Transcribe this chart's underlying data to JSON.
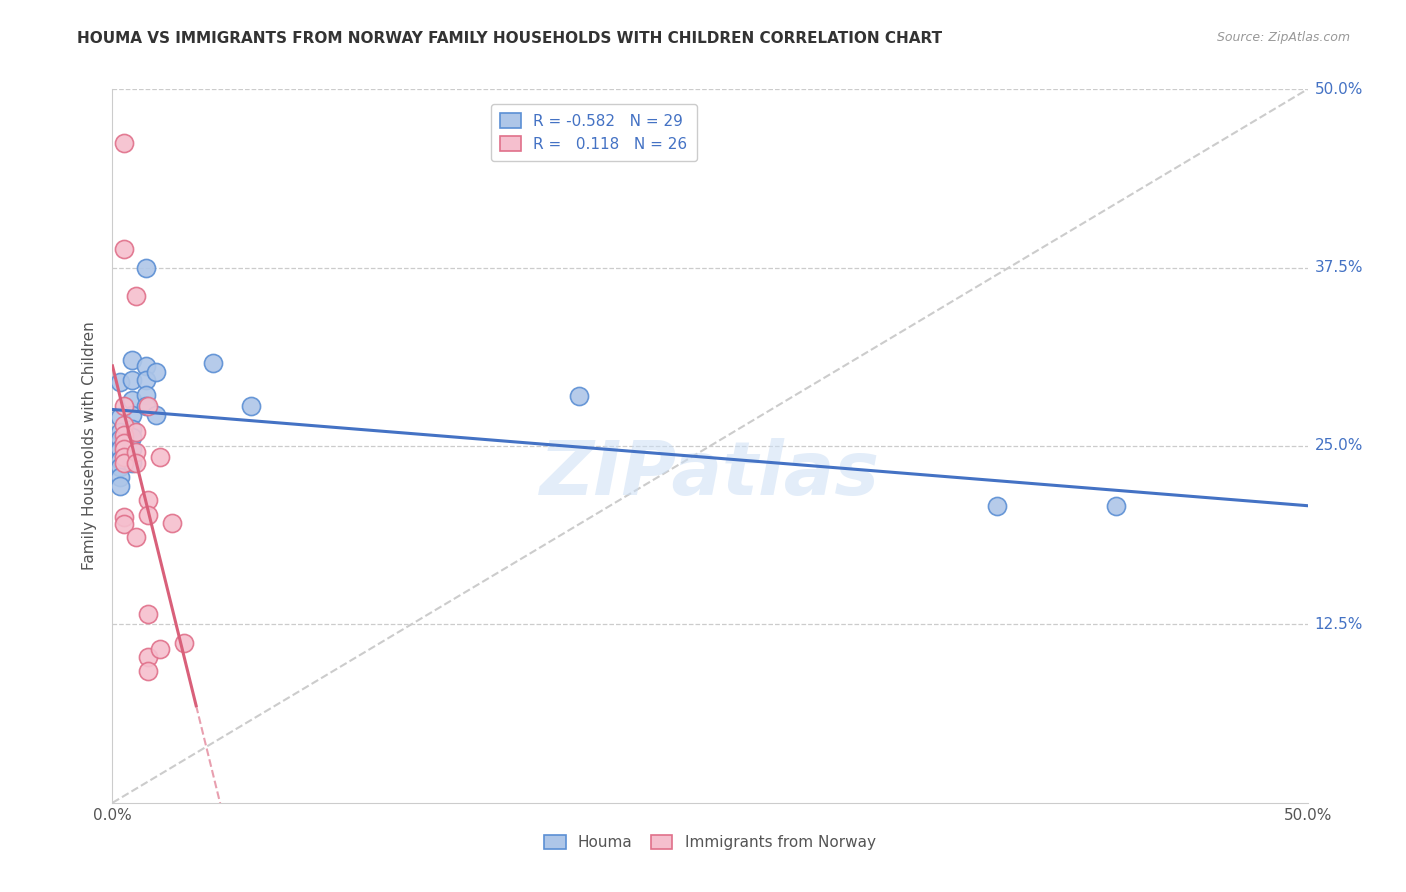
{
  "title": "HOUMA VS IMMIGRANTS FROM NORWAY FAMILY HOUSEHOLDS WITH CHILDREN CORRELATION CHART",
  "source": "Source: ZipAtlas.com",
  "ylabel": "Family Households with Children",
  "xlim": [
    0.0,
    0.5
  ],
  "ylim": [
    0.0,
    0.5
  ],
  "xtick_positions": [
    0.0,
    0.1,
    0.2,
    0.3,
    0.4,
    0.5
  ],
  "xtick_labels": [
    "0.0%",
    "",
    "",
    "",
    "",
    "50.0%"
  ],
  "ytick_positions": [
    0.125,
    0.25,
    0.375,
    0.5
  ],
  "ytick_labels": [
    "12.5%",
    "25.0%",
    "37.5%",
    "50.0%"
  ],
  "houma_fill": "#aec6e8",
  "houma_edge": "#5b8fd4",
  "norway_fill": "#f5bfce",
  "norway_edge": "#e0708a",
  "houma_line_color": "#4472c4",
  "norway_line_color": "#d9607a",
  "legend_R_houma": "-0.582",
  "legend_N_houma": "29",
  "legend_R_norway": "0.118",
  "legend_N_norway": "26",
  "watermark": "ZIPatlas",
  "grid_color": "#cccccc",
  "houma_points": [
    [
      0.003,
      0.295
    ],
    [
      0.003,
      0.27
    ],
    [
      0.003,
      0.26
    ],
    [
      0.003,
      0.255
    ],
    [
      0.003,
      0.248
    ],
    [
      0.003,
      0.24
    ],
    [
      0.003,
      0.235
    ],
    [
      0.003,
      0.228
    ],
    [
      0.003,
      0.222
    ],
    [
      0.008,
      0.31
    ],
    [
      0.008,
      0.296
    ],
    [
      0.008,
      0.282
    ],
    [
      0.008,
      0.272
    ],
    [
      0.008,
      0.262
    ],
    [
      0.008,
      0.256
    ],
    [
      0.008,
      0.248
    ],
    [
      0.008,
      0.238
    ],
    [
      0.014,
      0.375
    ],
    [
      0.014,
      0.306
    ],
    [
      0.014,
      0.296
    ],
    [
      0.014,
      0.286
    ],
    [
      0.014,
      0.278
    ],
    [
      0.018,
      0.302
    ],
    [
      0.018,
      0.272
    ],
    [
      0.042,
      0.308
    ],
    [
      0.058,
      0.278
    ],
    [
      0.195,
      0.285
    ],
    [
      0.37,
      0.208
    ],
    [
      0.42,
      0.208
    ]
  ],
  "norway_points": [
    [
      0.005,
      0.462
    ],
    [
      0.005,
      0.388
    ],
    [
      0.01,
      0.355
    ],
    [
      0.005,
      0.278
    ],
    [
      0.005,
      0.265
    ],
    [
      0.005,
      0.258
    ],
    [
      0.005,
      0.252
    ],
    [
      0.005,
      0.248
    ],
    [
      0.005,
      0.242
    ],
    [
      0.005,
      0.238
    ],
    [
      0.005,
      0.2
    ],
    [
      0.005,
      0.195
    ],
    [
      0.01,
      0.26
    ],
    [
      0.01,
      0.246
    ],
    [
      0.01,
      0.238
    ],
    [
      0.01,
      0.186
    ],
    [
      0.015,
      0.278
    ],
    [
      0.015,
      0.212
    ],
    [
      0.015,
      0.202
    ],
    [
      0.015,
      0.132
    ],
    [
      0.015,
      0.102
    ],
    [
      0.015,
      0.092
    ],
    [
      0.02,
      0.242
    ],
    [
      0.02,
      0.108
    ],
    [
      0.025,
      0.196
    ],
    [
      0.03,
      0.112
    ]
  ],
  "norway_line_xrange": [
    0.0,
    0.035
  ],
  "norway_dashed_xrange": [
    0.0,
    0.5
  ]
}
